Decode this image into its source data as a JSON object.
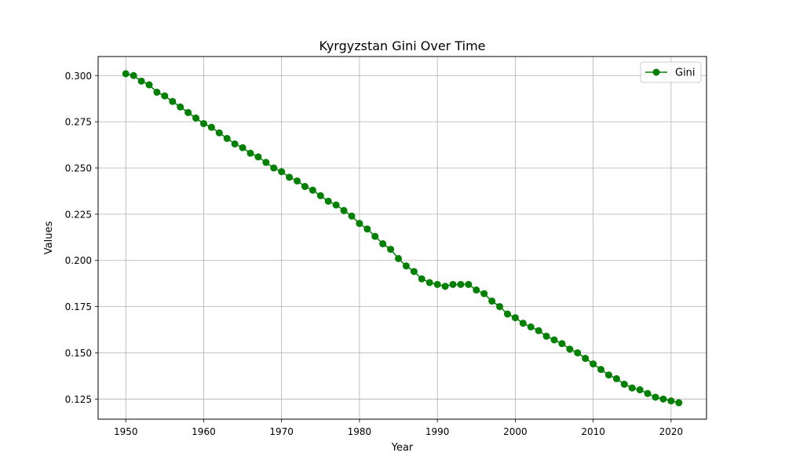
{
  "chart_data": {
    "type": "line",
    "title": "Kyrgyzstan Gini Over Time",
    "xlabel": "Year",
    "ylabel": "Values",
    "xlim": [
      1946.45,
      2024.55
    ],
    "ylim": [
      0.1141,
      0.3103
    ],
    "x_ticks": [
      1950,
      1960,
      1970,
      1980,
      1990,
      2000,
      2010,
      2020
    ],
    "y_ticks": [
      0.125,
      0.15,
      0.175,
      0.2,
      0.225,
      0.25,
      0.275,
      0.3
    ],
    "y_tick_labels": [
      "0.125",
      "0.150",
      "0.175",
      "0.200",
      "0.225",
      "0.250",
      "0.275",
      "0.300"
    ],
    "grid": true,
    "legend_position": "top-right",
    "series": [
      {
        "name": "Gini",
        "color": "#008000",
        "marker": "circle",
        "x": [
          1950,
          1951,
          1952,
          1953,
          1954,
          1955,
          1956,
          1957,
          1958,
          1959,
          1960,
          1961,
          1962,
          1963,
          1964,
          1965,
          1966,
          1967,
          1968,
          1969,
          1970,
          1971,
          1972,
          1973,
          1974,
          1975,
          1976,
          1977,
          1978,
          1979,
          1980,
          1981,
          1982,
          1983,
          1984,
          1985,
          1986,
          1987,
          1988,
          1989,
          1990,
          1991,
          1992,
          1993,
          1994,
          1995,
          1996,
          1997,
          1998,
          1999,
          2000,
          2001,
          2002,
          2003,
          2004,
          2005,
          2006,
          2007,
          2008,
          2009,
          2010,
          2011,
          2012,
          2013,
          2014,
          2015,
          2016,
          2017,
          2018,
          2019,
          2020,
          2021
        ],
        "y": [
          0.301,
          0.3,
          0.297,
          0.295,
          0.291,
          0.289,
          0.286,
          0.283,
          0.28,
          0.277,
          0.274,
          0.272,
          0.269,
          0.266,
          0.263,
          0.261,
          0.258,
          0.256,
          0.253,
          0.25,
          0.248,
          0.245,
          0.243,
          0.24,
          0.238,
          0.235,
          0.232,
          0.23,
          0.227,
          0.224,
          0.22,
          0.217,
          0.213,
          0.209,
          0.206,
          0.201,
          0.197,
          0.194,
          0.19,
          0.188,
          0.187,
          0.186,
          0.187,
          0.187,
          0.187,
          0.184,
          0.182,
          0.178,
          0.175,
          0.171,
          0.169,
          0.166,
          0.164,
          0.162,
          0.159,
          0.157,
          0.155,
          0.152,
          0.15,
          0.147,
          0.144,
          0.141,
          0.138,
          0.136,
          0.133,
          0.131,
          0.13,
          0.128,
          0.126,
          0.125,
          0.124,
          0.123
        ]
      }
    ]
  }
}
